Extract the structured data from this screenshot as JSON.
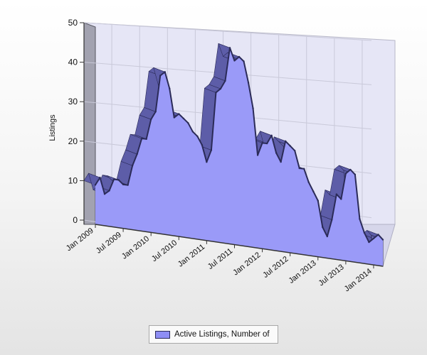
{
  "chart_data": {
    "type": "area",
    "style": "3d",
    "ylabel": "Listings",
    "ylim": [
      0,
      50
    ],
    "yticks": [
      0,
      10,
      20,
      30,
      40,
      50
    ],
    "grid": true,
    "legend_position": "bottom-center",
    "x_tick_labels": [
      "Jan 2009",
      "Jul 2009",
      "Jan 2010",
      "Jul 2010",
      "Jan 2011",
      "Jul 2011",
      "Jan 2012",
      "Jul 2012",
      "Jan 2013",
      "Jul 2013",
      "Jan 2014"
    ],
    "x": [
      "2009-01",
      "2009-02",
      "2009-03",
      "2009-04",
      "2009-05",
      "2009-06",
      "2009-07",
      "2009-08",
      "2009-09",
      "2009-10",
      "2009-11",
      "2009-12",
      "2010-01",
      "2010-02",
      "2010-03",
      "2010-04",
      "2010-05",
      "2010-06",
      "2010-07",
      "2010-08",
      "2010-09",
      "2010-10",
      "2010-11",
      "2010-12",
      "2011-01",
      "2011-02",
      "2011-03",
      "2011-04",
      "2011-05",
      "2011-06",
      "2011-07",
      "2011-08",
      "2011-09",
      "2011-10",
      "2011-11",
      "2011-12",
      "2012-01",
      "2012-02",
      "2012-03",
      "2012-04",
      "2012-05",
      "2012-06",
      "2012-07",
      "2012-08",
      "2012-09",
      "2012-10",
      "2012-11",
      "2012-12",
      "2013-01",
      "2013-02",
      "2013-03",
      "2013-04",
      "2013-05",
      "2013-06",
      "2013-07",
      "2013-08",
      "2013-09",
      "2013-10",
      "2013-11",
      "2013-12",
      "2014-01",
      "2014-02",
      "2014-03"
    ],
    "series": [
      {
        "name": "Active Listings, Number of",
        "color": "#9a9af8",
        "edge_color": "#2b2b58",
        "values": [
          10,
          12,
          8,
          9,
          12,
          12,
          11,
          11,
          16,
          19,
          23,
          23,
          28,
          30,
          39,
          40,
          36,
          29,
          30,
          29,
          28,
          26,
          25,
          23,
          19,
          22,
          36,
          37,
          39,
          47,
          44,
          45,
          44,
          39,
          33,
          22,
          25,
          25,
          27,
          23,
          21,
          26,
          25,
          24,
          20,
          20,
          17,
          15,
          13,
          7,
          5,
          9,
          15,
          14,
          20,
          21,
          20,
          10,
          7,
          5,
          6,
          7,
          6
        ]
      }
    ]
  },
  "legend": {
    "label": "Active Listings, Number of"
  }
}
